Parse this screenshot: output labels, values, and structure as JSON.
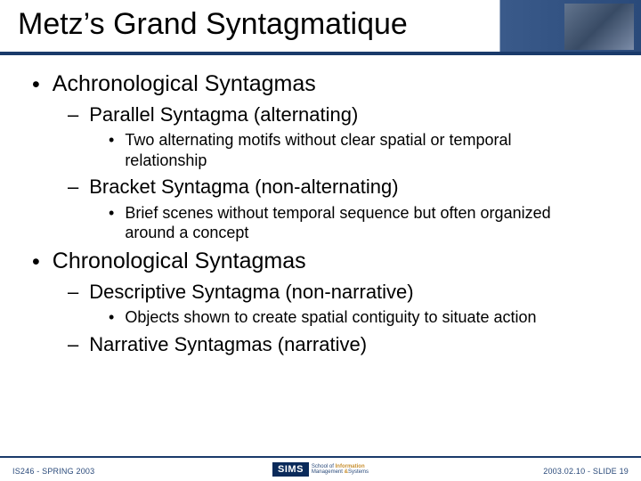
{
  "colors": {
    "accent_dark": "#1a3a6a",
    "accent_blue": "#2a4a7a",
    "title_gradient_stop": "#3a5a8a",
    "background": "#ffffff",
    "text": "#000000",
    "logo_gold": "#c89030"
  },
  "typography": {
    "title_fontsize": 34,
    "lvl1_fontsize": 25,
    "lvl2_fontsize": 22,
    "lvl3_fontsize": 18,
    "footer_fontsize": 9
  },
  "title": "Metz’s Grand Syntagmatique",
  "bullets": [
    {
      "text": "Achronological Syntagmas",
      "children": [
        {
          "text": "Parallel Syntagma (alternating)",
          "children": [
            {
              "text": "Two alternating motifs without clear spatial or temporal relationship"
            }
          ]
        },
        {
          "text": "Bracket Syntagma (non-alternating)",
          "children": [
            {
              "text": "Brief scenes without temporal sequence but often organized around a concept"
            }
          ]
        }
      ]
    },
    {
      "text": "Chronological Syntagmas",
      "children": [
        {
          "text": "Descriptive Syntagma (non-narrative)",
          "children": [
            {
              "text": "Objects shown to create spatial contiguity to situate action"
            }
          ]
        },
        {
          "text": "Narrative Syntagmas (narrative)",
          "children": []
        }
      ]
    }
  ],
  "footer": {
    "left": "IS246 - SPRING 2003",
    "right": "2003.02.10 - SLIDE 19",
    "logo_main": "SIMS",
    "logo_sub_line1": "School of",
    "logo_sub_hl": "Information",
    "logo_sub_line2a": "Management",
    "logo_sub_line2b": "Systems"
  }
}
